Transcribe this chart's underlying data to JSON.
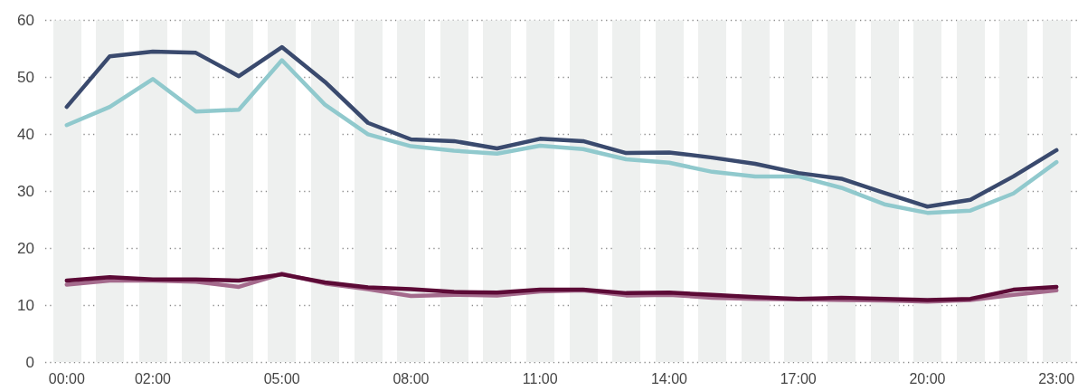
{
  "chart_data": {
    "type": "line",
    "x": [
      0,
      1,
      2,
      3,
      4,
      5,
      6,
      7,
      8,
      9,
      10,
      11,
      12,
      13,
      14,
      15,
      16,
      17,
      18,
      19,
      20,
      21,
      22,
      23
    ],
    "xlim": [
      -0.5,
      23.5
    ],
    "xticks": [
      {
        "value": 0,
        "label": "00:00"
      },
      {
        "value": 1,
        "label": null
      },
      {
        "value": 2,
        "label": "02:00"
      },
      {
        "value": 3,
        "label": null
      },
      {
        "value": 4,
        "label": null
      },
      {
        "value": 5,
        "label": "05:00"
      },
      {
        "value": 6,
        "label": null
      },
      {
        "value": 7,
        "label": null
      },
      {
        "value": 8,
        "label": "08:00"
      },
      {
        "value": 9,
        "label": null
      },
      {
        "value": 10,
        "label": null
      },
      {
        "value": 11,
        "label": "11:00"
      },
      {
        "value": 12,
        "label": null
      },
      {
        "value": 13,
        "label": null
      },
      {
        "value": 14,
        "label": "14:00"
      },
      {
        "value": 15,
        "label": null
      },
      {
        "value": 16,
        "label": null
      },
      {
        "value": 17,
        "label": "17:00"
      },
      {
        "value": 18,
        "label": null
      },
      {
        "value": 19,
        "label": null
      },
      {
        "value": 20,
        "label": "20:00"
      },
      {
        "value": 21,
        "label": null
      },
      {
        "value": 22,
        "label": null
      },
      {
        "value": 23,
        "label": "23:00"
      }
    ],
    "ylim": [
      0,
      60
    ],
    "yticks": [
      0,
      10,
      20,
      30,
      40,
      50,
      60
    ],
    "grid": true,
    "marker": "none",
    "line_style": "solid",
    "series": [
      {
        "color": "#90c9cd",
        "values": [
          41.6,
          44.8,
          49.7,
          44.0,
          44.3,
          53.0,
          45.2,
          40.0,
          37.9,
          37.1,
          36.6,
          38.0,
          37.4,
          35.6,
          35.0,
          33.4,
          32.6,
          32.6,
          30.6,
          27.7,
          26.2,
          26.6,
          29.6,
          35.1
        ]
      },
      {
        "color": "#3a4a6e",
        "values": [
          44.8,
          53.7,
          54.5,
          54.3,
          50.2,
          55.3,
          49.2,
          42.0,
          39.1,
          38.8,
          37.5,
          39.2,
          38.8,
          36.7,
          36.8,
          35.9,
          34.8,
          33.2,
          32.2,
          29.7,
          27.3,
          28.5,
          32.6,
          37.2
        ]
      },
      {
        "color": "#a46a8c",
        "values": [
          13.6,
          14.3,
          14.3,
          14.1,
          13.2,
          15.5,
          13.8,
          12.8,
          11.6,
          11.8,
          11.7,
          12.4,
          12.6,
          11.7,
          11.8,
          11.3,
          11.1,
          11.0,
          10.9,
          10.8,
          10.6,
          10.9,
          11.8,
          12.6
        ]
      },
      {
        "color": "#5c0a36",
        "values": [
          14.3,
          14.9,
          14.5,
          14.5,
          14.3,
          15.4,
          14.0,
          13.1,
          12.8,
          12.3,
          12.2,
          12.7,
          12.7,
          12.1,
          12.2,
          11.8,
          11.4,
          11.1,
          11.3,
          11.1,
          10.9,
          11.1,
          12.7,
          13.2
        ]
      }
    ]
  }
}
